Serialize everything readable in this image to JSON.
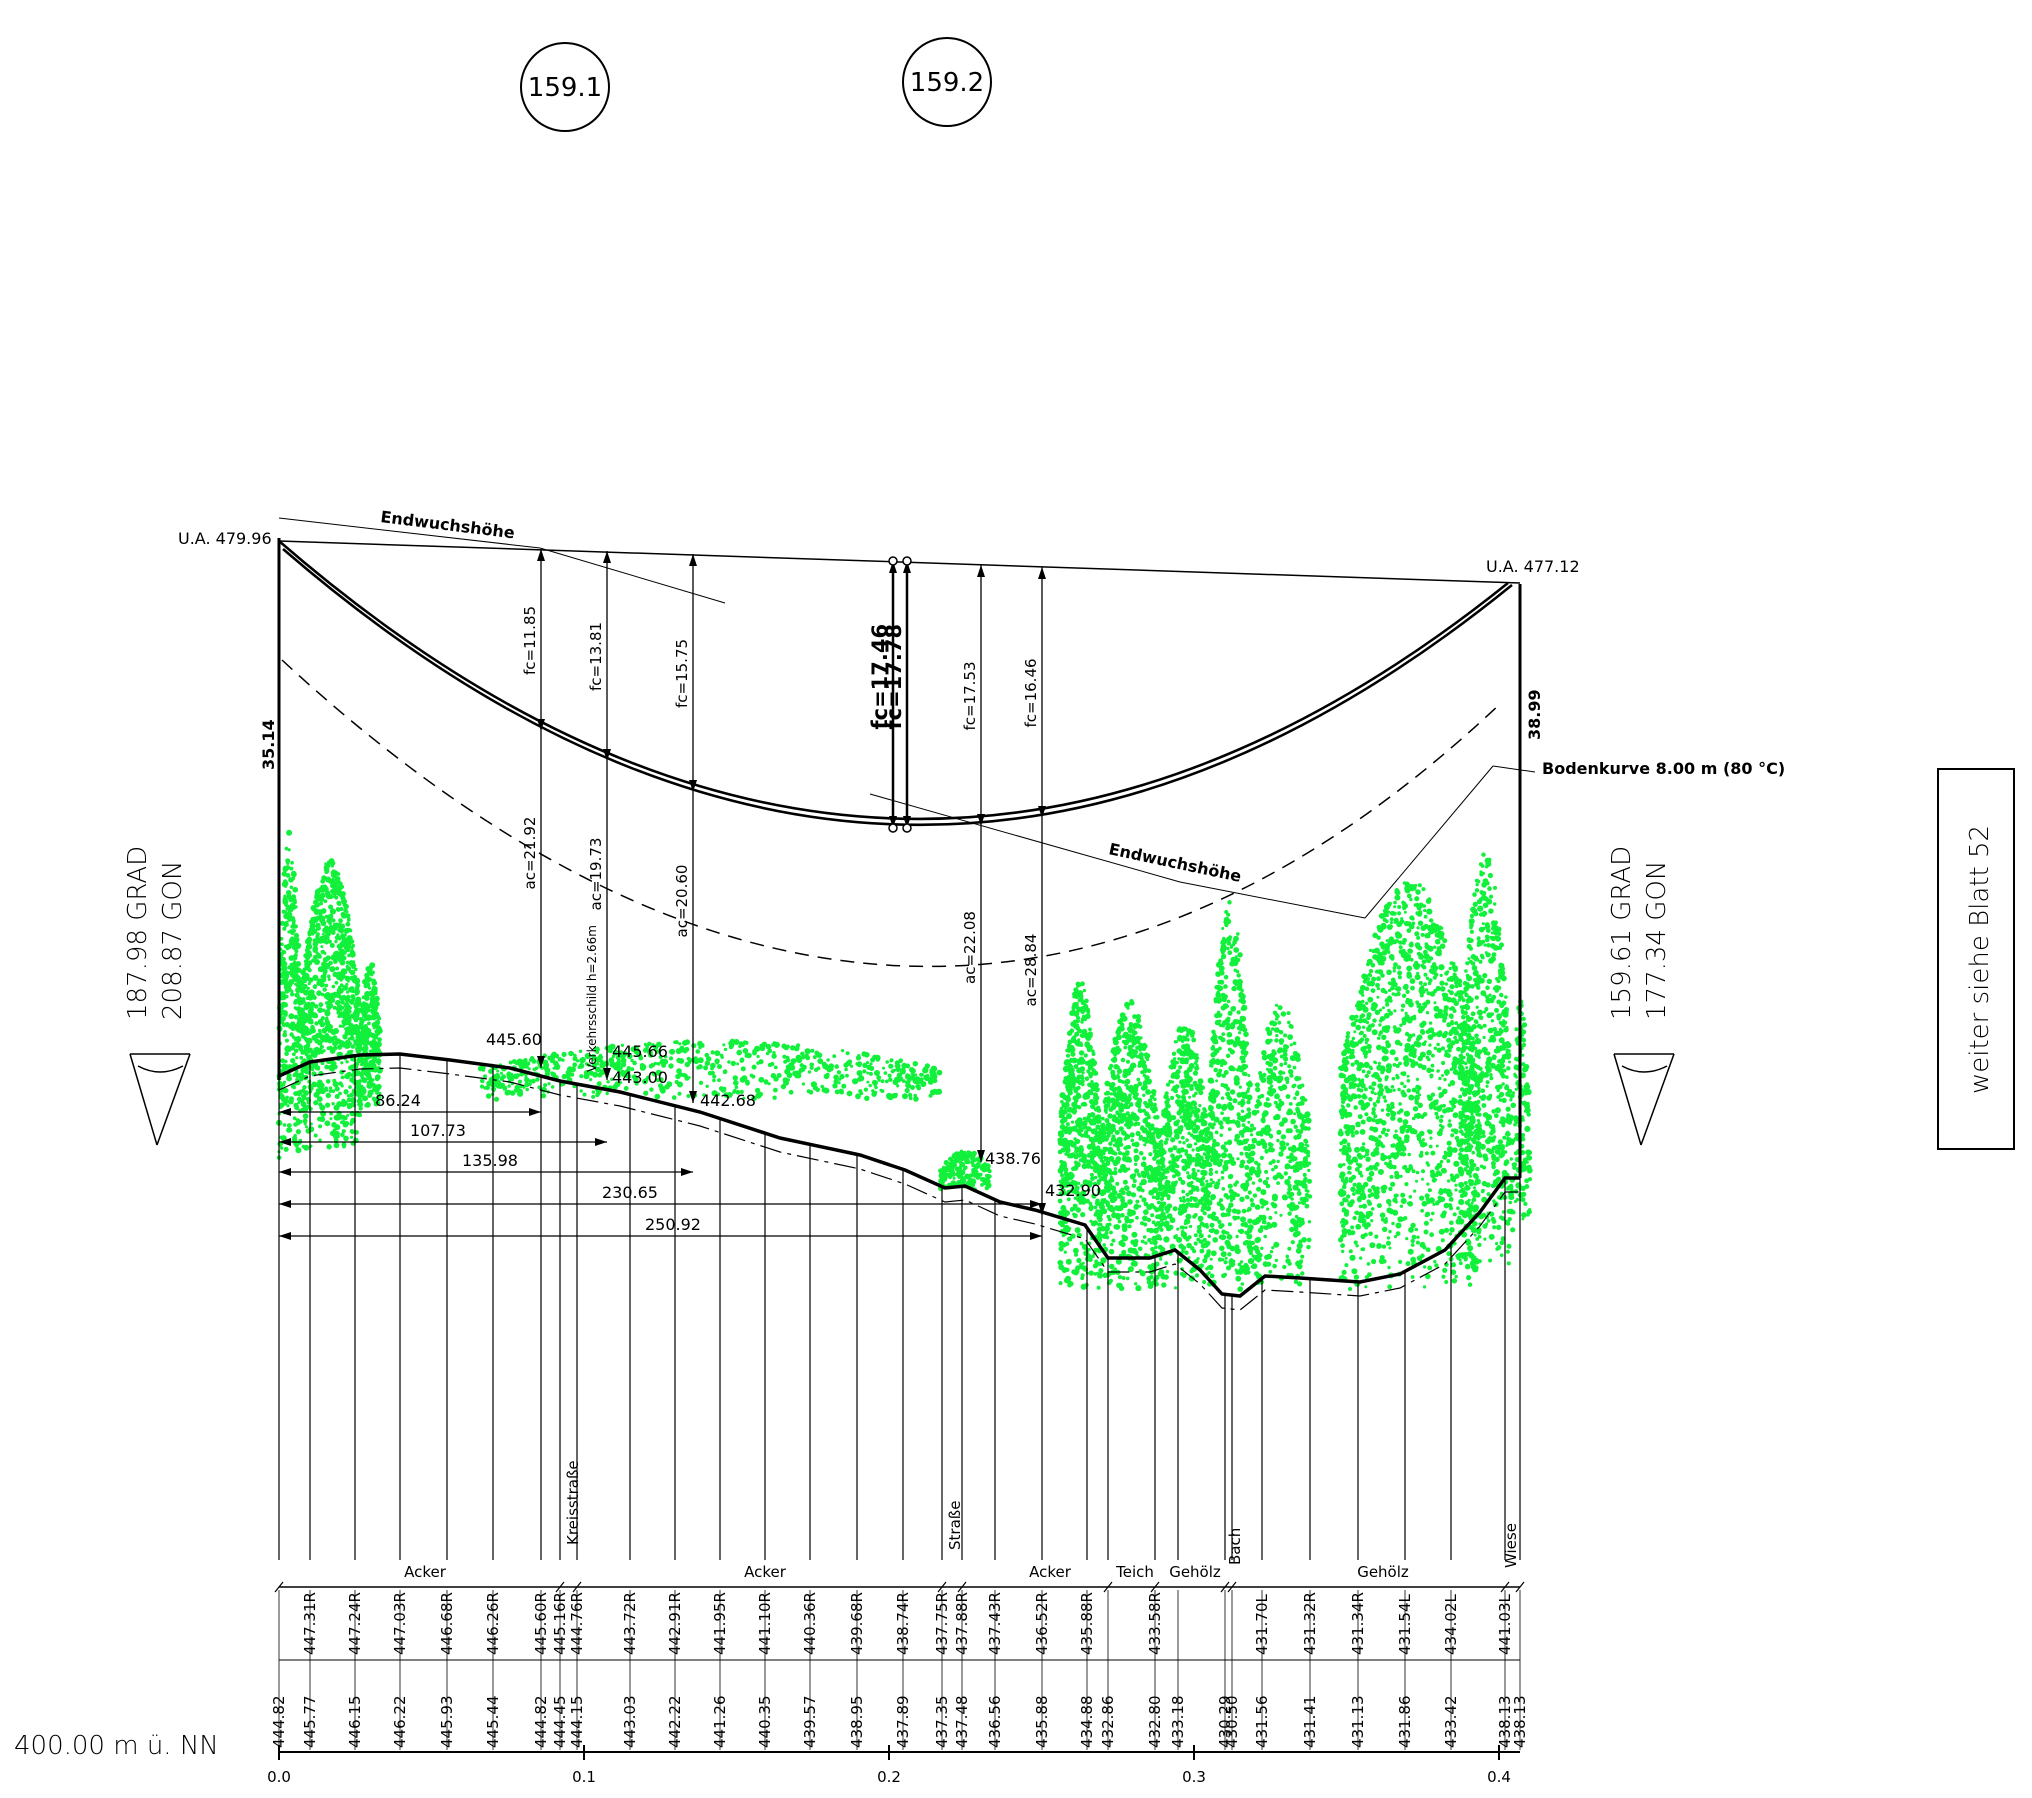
{
  "towers": [
    {
      "id": "159.1",
      "ua": "U.A. 479.96",
      "height": "35.14"
    },
    {
      "id": "159.2",
      "ua": "U.A. 477.12",
      "height": "38.99"
    }
  ],
  "angles": {
    "left": {
      "grad": "187.98 GRAD",
      "gon": "208.87 GON"
    },
    "right": {
      "grad": "159.61 GRAD",
      "gon": "177.34 GON"
    }
  },
  "continuation": "weiter siehe Blatt 52",
  "base_level": "400.00 m ü. NN",
  "labels": {
    "endwuchs": "Endwuchshöhe",
    "bodenkurve": "Bodenkurve 8.00 m (80 °C)",
    "verkehrsschild": "Verkehrsschild h=2.66m"
  },
  "sags": [
    {
      "fc": "fc=11.85",
      "ac": "ac=21.92",
      "bold": false
    },
    {
      "fc": "fc=13.81",
      "ac": "ac=19.73",
      "bold": false
    },
    {
      "fc": "fc=15.75",
      "ac": "ac=20.60",
      "bold": false
    },
    {
      "fc": "fc=17.46",
      "ac": "",
      "bold": true
    },
    {
      "fc": "fc=17.78",
      "ac": "",
      "bold": true
    },
    {
      "fc": "fc=17.53",
      "ac": "ac=22.08",
      "bold": false
    },
    {
      "fc": "fc=16.46",
      "ac": "ac=28.84",
      "bold": false
    }
  ],
  "spot_heights": [
    "445.60",
    "445.66",
    "443.00",
    "442.68",
    "438.76",
    "432.90"
  ],
  "distances": [
    "86.24",
    "107.73",
    "135.98",
    "230.65",
    "250.92"
  ],
  "landuse": [
    {
      "text": "Acker",
      "rotate": false
    },
    {
      "text": "Kreisstraße",
      "rotate": true
    },
    {
      "text": "Acker",
      "rotate": false
    },
    {
      "text": "Straße",
      "rotate": true
    },
    {
      "text": "Acker",
      "rotate": false
    },
    {
      "text": "Teich",
      "rotate": false
    },
    {
      "text": "Gehölz",
      "rotate": false
    },
    {
      "text": "Bach",
      "rotate": true
    },
    {
      "text": "Gehölz",
      "rotate": false
    },
    {
      "text": "Wiese",
      "rotate": true
    }
  ],
  "elev_sides": [
    "447.31R",
    "447.24R",
    "447.03R",
    "446.68R",
    "446.26R",
    "445.60R",
    "445.16R",
    "444.76R",
    "443.72R",
    "442.91R",
    "441.95R",
    "441.10R",
    "440.36R",
    "439.68R",
    "438.74R",
    "437.75R",
    "437.88R",
    "437.43R",
    "436.52R",
    "435.88R",
    "433.58R",
    "431.70L",
    "431.32R",
    "431.34R",
    "431.54L",
    "434.02L",
    "441.03L"
  ],
  "elev_ground": [
    "444.82",
    "445.77",
    "446.15",
    "446.22",
    "445.93",
    "445.44",
    "444.82",
    "444.45",
    "444.15",
    "443.03",
    "442.22",
    "441.26",
    "440.35",
    "439.57",
    "438.95",
    "437.89",
    "437.35",
    "437.48",
    "436.56",
    "435.88",
    "434.88",
    "432.86",
    "432.80",
    "433.18",
    "430.29",
    "430.50",
    "431.56",
    "431.41",
    "431.13",
    "431.86",
    "433.42",
    "438.13",
    "438.13"
  ],
  "km_ticks": [
    "0.0",
    "0.1",
    "0.2",
    "0.3",
    "0.4"
  ]
}
